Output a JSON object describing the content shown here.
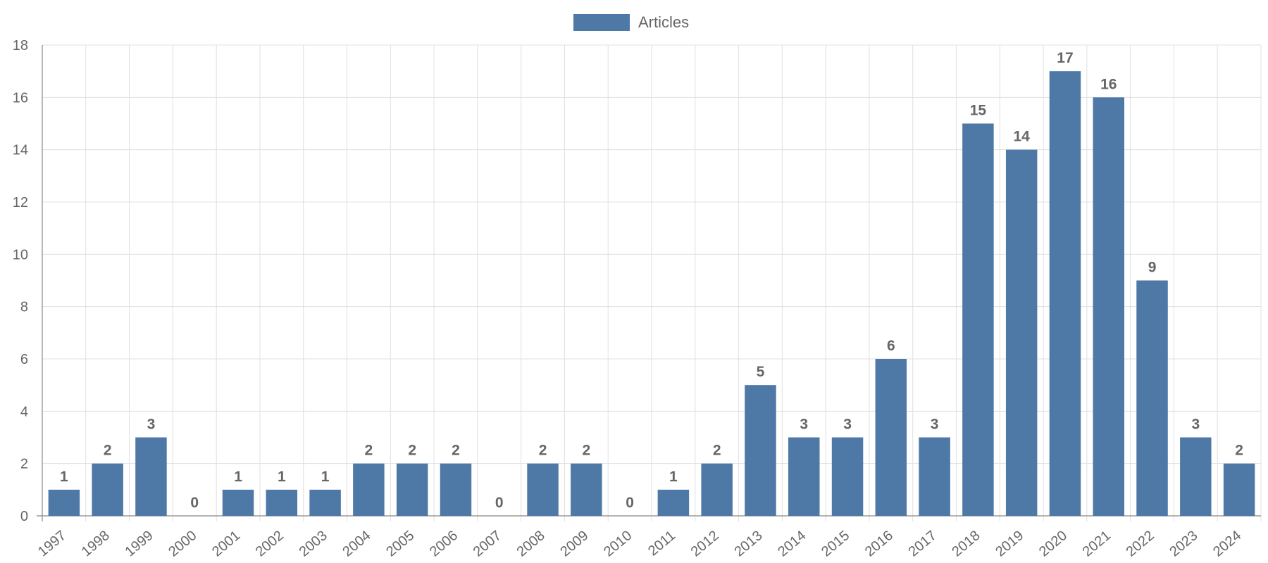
{
  "colors": {
    "bar": "#4e79a7",
    "grid": "#e0e0e0",
    "text": "#666666"
  },
  "chart_data": {
    "type": "bar",
    "categories": [
      "1997",
      "1998",
      "1999",
      "2000",
      "2001",
      "2002",
      "2003",
      "2004",
      "2005",
      "2006",
      "2007",
      "2008",
      "2009",
      "2010",
      "2011",
      "2012",
      "2013",
      "2014",
      "2015",
      "2016",
      "2017",
      "2018",
      "2019",
      "2020",
      "2021",
      "2022",
      "2023",
      "2024"
    ],
    "series": [
      {
        "name": "Articles",
        "values": [
          1,
          2,
          3,
          0,
          1,
          1,
          1,
          2,
          2,
          2,
          0,
          2,
          2,
          0,
          1,
          2,
          5,
          3,
          3,
          6,
          3,
          15,
          14,
          17,
          16,
          9,
          3,
          2
        ]
      }
    ],
    "ylim": [
      0,
      18
    ],
    "yticks": [
      0,
      2,
      4,
      6,
      8,
      10,
      12,
      14,
      16,
      18
    ],
    "grid": true,
    "legend_position": "top-center",
    "data_labels": true
  }
}
